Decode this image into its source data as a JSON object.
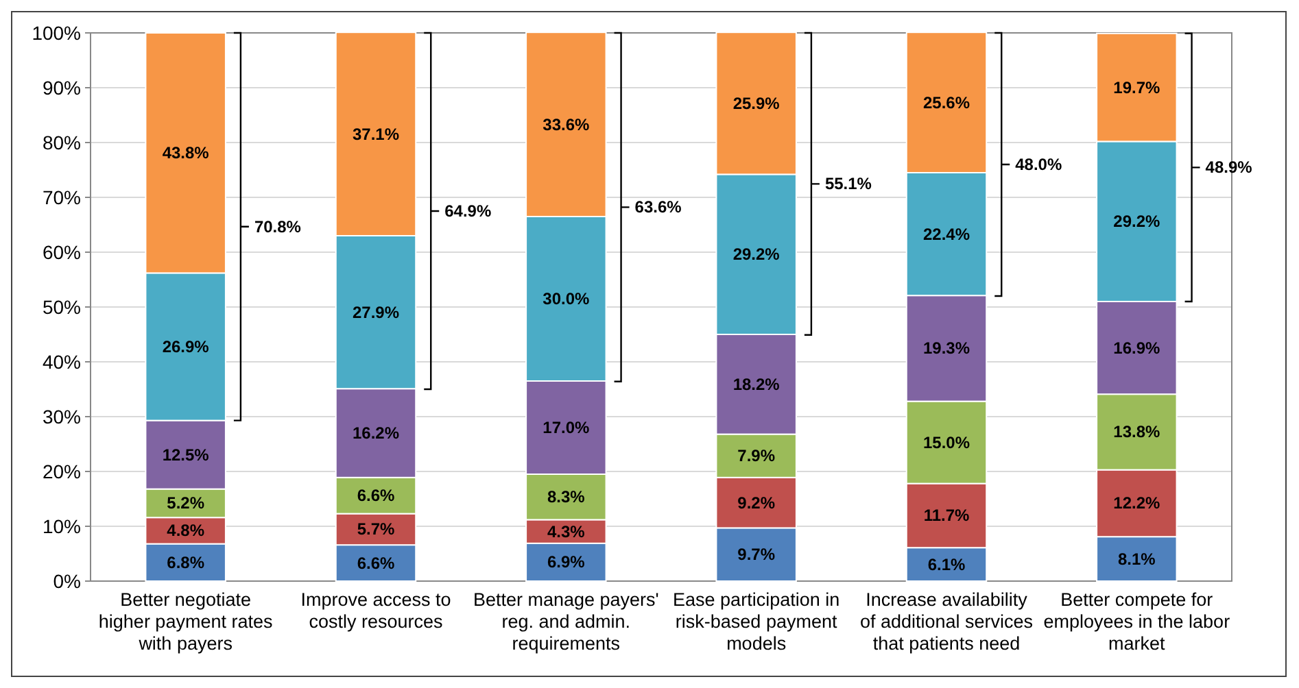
{
  "chart_data": {
    "type": "bar",
    "stacked": true,
    "categories": [
      "Better negotiate higher payment rates with payers",
      "Improve access to costly resources",
      "Better manage payers' reg. and admin. requirements",
      "Ease participation in risk-based payment models",
      "Increase availability of additional services that patients need",
      "Better compete for employees in the labor market"
    ],
    "series": [
      {
        "color": "#4f81bd",
        "values": [
          6.8,
          6.6,
          6.9,
          9.7,
          6.1,
          8.1
        ],
        "value_labels": [
          "6.8%",
          "6.6%",
          "6.9%",
          "9.7%",
          "6.1%",
          "8.1%"
        ]
      },
      {
        "color": "#c0504d",
        "values": [
          4.8,
          5.7,
          4.3,
          9.2,
          11.7,
          12.2
        ],
        "value_labels": [
          "4.8%",
          "5.7%",
          "4.3%",
          "9.2%",
          "11.7%",
          "12.2%"
        ]
      },
      {
        "color": "#9bbb59",
        "values": [
          5.2,
          6.6,
          8.3,
          7.9,
          15.0,
          13.8
        ],
        "value_labels": [
          "5.2%",
          "6.6%",
          "8.3%",
          "7.9%",
          "15.0%",
          "13.8%"
        ]
      },
      {
        "color": "#8064a2",
        "values": [
          12.5,
          16.2,
          17.0,
          18.2,
          19.3,
          16.9
        ],
        "value_labels": [
          "12.5%",
          "16.2%",
          "17.0%",
          "18.2%",
          "19.3%",
          "16.9%"
        ]
      },
      {
        "color": "#4bacc6",
        "values": [
          26.9,
          27.9,
          30.0,
          29.2,
          22.4,
          29.2
        ],
        "value_labels": [
          "26.9%",
          "27.9%",
          "30.0%",
          "29.2%",
          "22.4%",
          "29.2%"
        ]
      },
      {
        "color": "#f79646",
        "values": [
          43.8,
          37.1,
          33.6,
          25.9,
          25.6,
          19.7
        ],
        "value_labels": [
          "43.8%",
          "37.1%",
          "33.6%",
          "25.9%",
          "25.6%",
          "19.7%"
        ]
      }
    ],
    "ylim": [
      0,
      100
    ],
    "yticks": [
      {
        "value": 0,
        "label": "0%"
      },
      {
        "value": 10,
        "label": "10%"
      },
      {
        "value": 20,
        "label": "20%"
      },
      {
        "value": 30,
        "label": "30%"
      },
      {
        "value": 40,
        "label": "40%"
      },
      {
        "value": 50,
        "label": "50%"
      },
      {
        "value": 60,
        "label": "60%"
      },
      {
        "value": 70,
        "label": "70%"
      },
      {
        "value": 80,
        "label": "80%"
      },
      {
        "value": 90,
        "label": "90%"
      },
      {
        "value": 100,
        "label": "100%"
      }
    ],
    "grid": "y",
    "annotations": [
      "70.8%",
      "64.9%",
      "63.6%",
      "55.1%",
      "48.0%",
      "48.9%"
    ]
  }
}
